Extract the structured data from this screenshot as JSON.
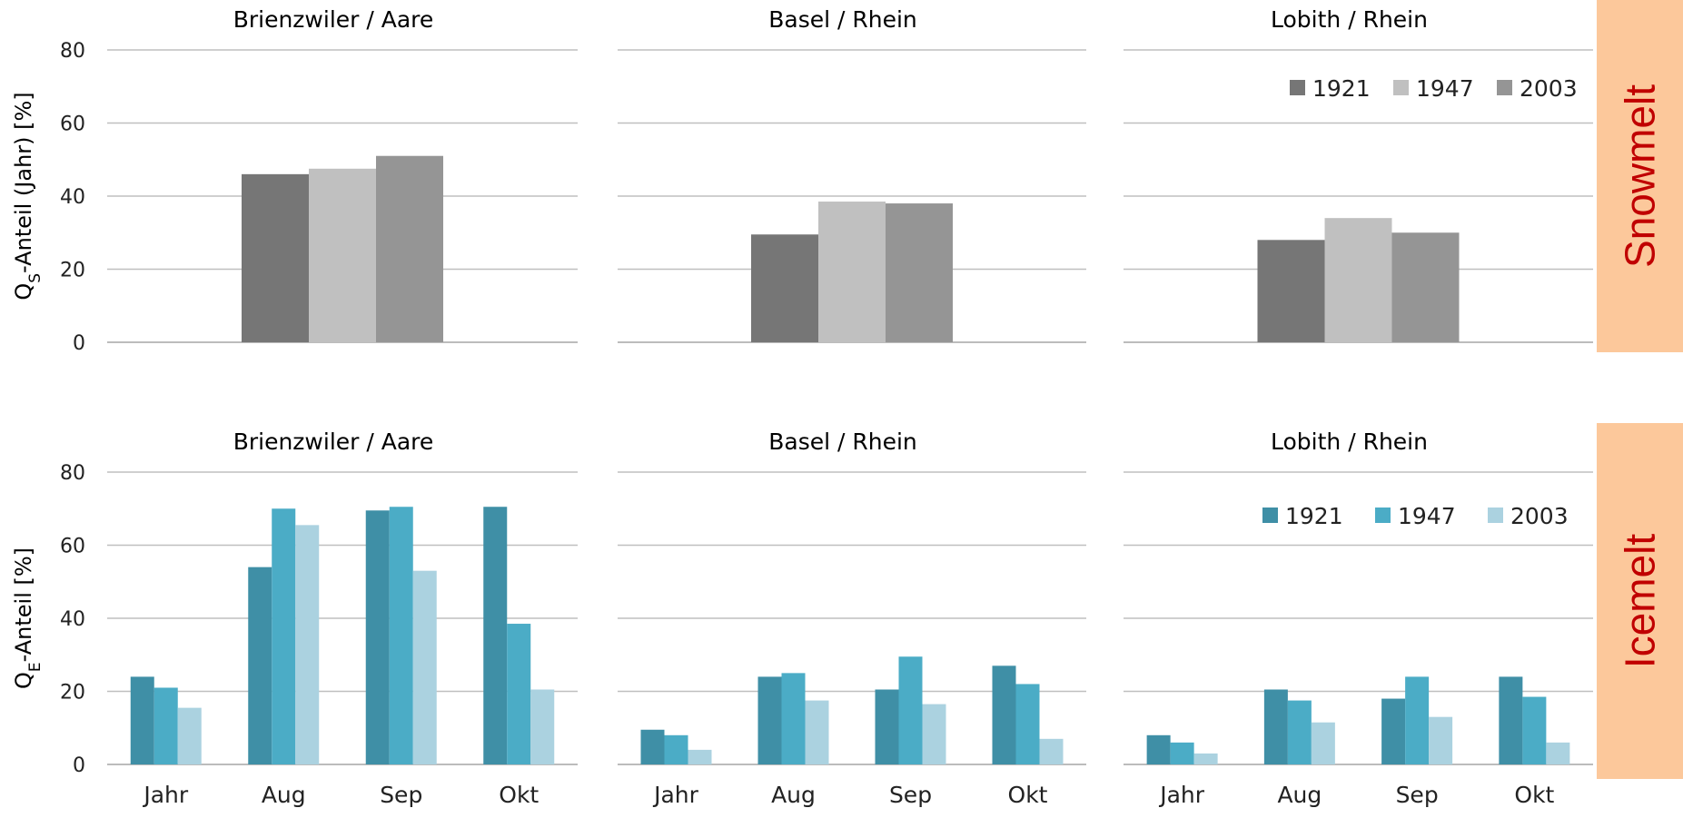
{
  "side_labels": [
    {
      "text": "Snowmelt",
      "color": "#fcc89b",
      "text_color": "#c00000"
    },
    {
      "text": "Icemelt",
      "color": "#fcc89b",
      "text_color": "#c00000"
    }
  ],
  "y_labels": [
    {
      "main": "Q",
      "sub": "S",
      "rest": "-Anteil  (Jahr) [%]"
    },
    {
      "main": "Q",
      "sub": "E",
      "rest": "-Anteil  [%]"
    }
  ],
  "chart_data": [
    {
      "type": "bar",
      "title": "Brienzwiler / Aare",
      "row": 0,
      "col": 0,
      "categories": [
        "Jahr"
      ],
      "ylim": [
        0,
        80
      ],
      "yticks": [
        0,
        20,
        40,
        60,
        80
      ],
      "show_xticks": false,
      "series": [
        {
          "name": "1921",
          "color": "#767676",
          "values": [
            46
          ]
        },
        {
          "name": "1947",
          "color": "#c0c0c0",
          "values": [
            47.5
          ]
        },
        {
          "name": "2003",
          "color": "#959595",
          "values": [
            51
          ]
        }
      ]
    },
    {
      "type": "bar",
      "title": "Basel / Rhein",
      "row": 0,
      "col": 1,
      "categories": [
        "Jahr"
      ],
      "ylim": [
        0,
        80
      ],
      "yticks": [
        0,
        20,
        40,
        60,
        80
      ],
      "show_xticks": false,
      "series": [
        {
          "name": "1921",
          "color": "#767676",
          "values": [
            29.5
          ]
        },
        {
          "name": "1947",
          "color": "#c0c0c0",
          "values": [
            38.5
          ]
        },
        {
          "name": "2003",
          "color": "#959595",
          "values": [
            38
          ]
        }
      ]
    },
    {
      "type": "bar",
      "title": "Lobith / Rhein",
      "row": 0,
      "col": 2,
      "categories": [
        "Jahr"
      ],
      "ylim": [
        0,
        80
      ],
      "yticks": [
        0,
        20,
        40,
        60,
        80
      ],
      "show_xticks": false,
      "legend": "top-right",
      "series": [
        {
          "name": "1921",
          "color": "#767676",
          "values": [
            28
          ]
        },
        {
          "name": "1947",
          "color": "#c0c0c0",
          "values": [
            34
          ]
        },
        {
          "name": "2003",
          "color": "#959595",
          "values": [
            30
          ]
        }
      ]
    },
    {
      "type": "bar",
      "title": "Brienzwiler / Aare",
      "row": 1,
      "col": 0,
      "categories": [
        "Jahr",
        "Aug",
        "Sep",
        "Okt"
      ],
      "ylim": [
        0,
        80
      ],
      "yticks": [
        0,
        20,
        40,
        60,
        80
      ],
      "show_xticks": true,
      "series": [
        {
          "name": "1921",
          "color": "#3f8fa6",
          "values": [
            24,
            54,
            69.5,
            70.5
          ]
        },
        {
          "name": "1947",
          "color": "#4bacc6",
          "values": [
            21,
            70,
            70.5,
            38.5
          ]
        },
        {
          "name": "2003",
          "color": "#abd2e0",
          "values": [
            15.5,
            65.5,
            53,
            20.5
          ]
        }
      ]
    },
    {
      "type": "bar",
      "title": "Basel / Rhein",
      "row": 1,
      "col": 1,
      "categories": [
        "Jahr",
        "Aug",
        "Sep",
        "Okt"
      ],
      "ylim": [
        0,
        80
      ],
      "yticks": [
        0,
        20,
        40,
        60,
        80
      ],
      "show_xticks": true,
      "series": [
        {
          "name": "1921",
          "color": "#3f8fa6",
          "values": [
            9.5,
            24,
            20.5,
            27
          ]
        },
        {
          "name": "1947",
          "color": "#4bacc6",
          "values": [
            8,
            25,
            29.5,
            22
          ]
        },
        {
          "name": "2003",
          "color": "#abd2e0",
          "values": [
            4,
            17.5,
            16.5,
            7
          ]
        }
      ]
    },
    {
      "type": "bar",
      "title": "Lobith / Rhein",
      "row": 1,
      "col": 2,
      "categories": [
        "Jahr",
        "Aug",
        "Sep",
        "Okt"
      ],
      "ylim": [
        0,
        80
      ],
      "yticks": [
        0,
        20,
        40,
        60,
        80
      ],
      "show_xticks": true,
      "legend": "top-right",
      "series": [
        {
          "name": "1921",
          "color": "#3f8fa6",
          "values": [
            8,
            20.5,
            18,
            24
          ]
        },
        {
          "name": "1947",
          "color": "#4bacc6",
          "values": [
            6,
            17.5,
            24,
            18.5
          ]
        },
        {
          "name": "2003",
          "color": "#abd2e0",
          "values": [
            3,
            11.5,
            13,
            6
          ]
        }
      ]
    }
  ]
}
